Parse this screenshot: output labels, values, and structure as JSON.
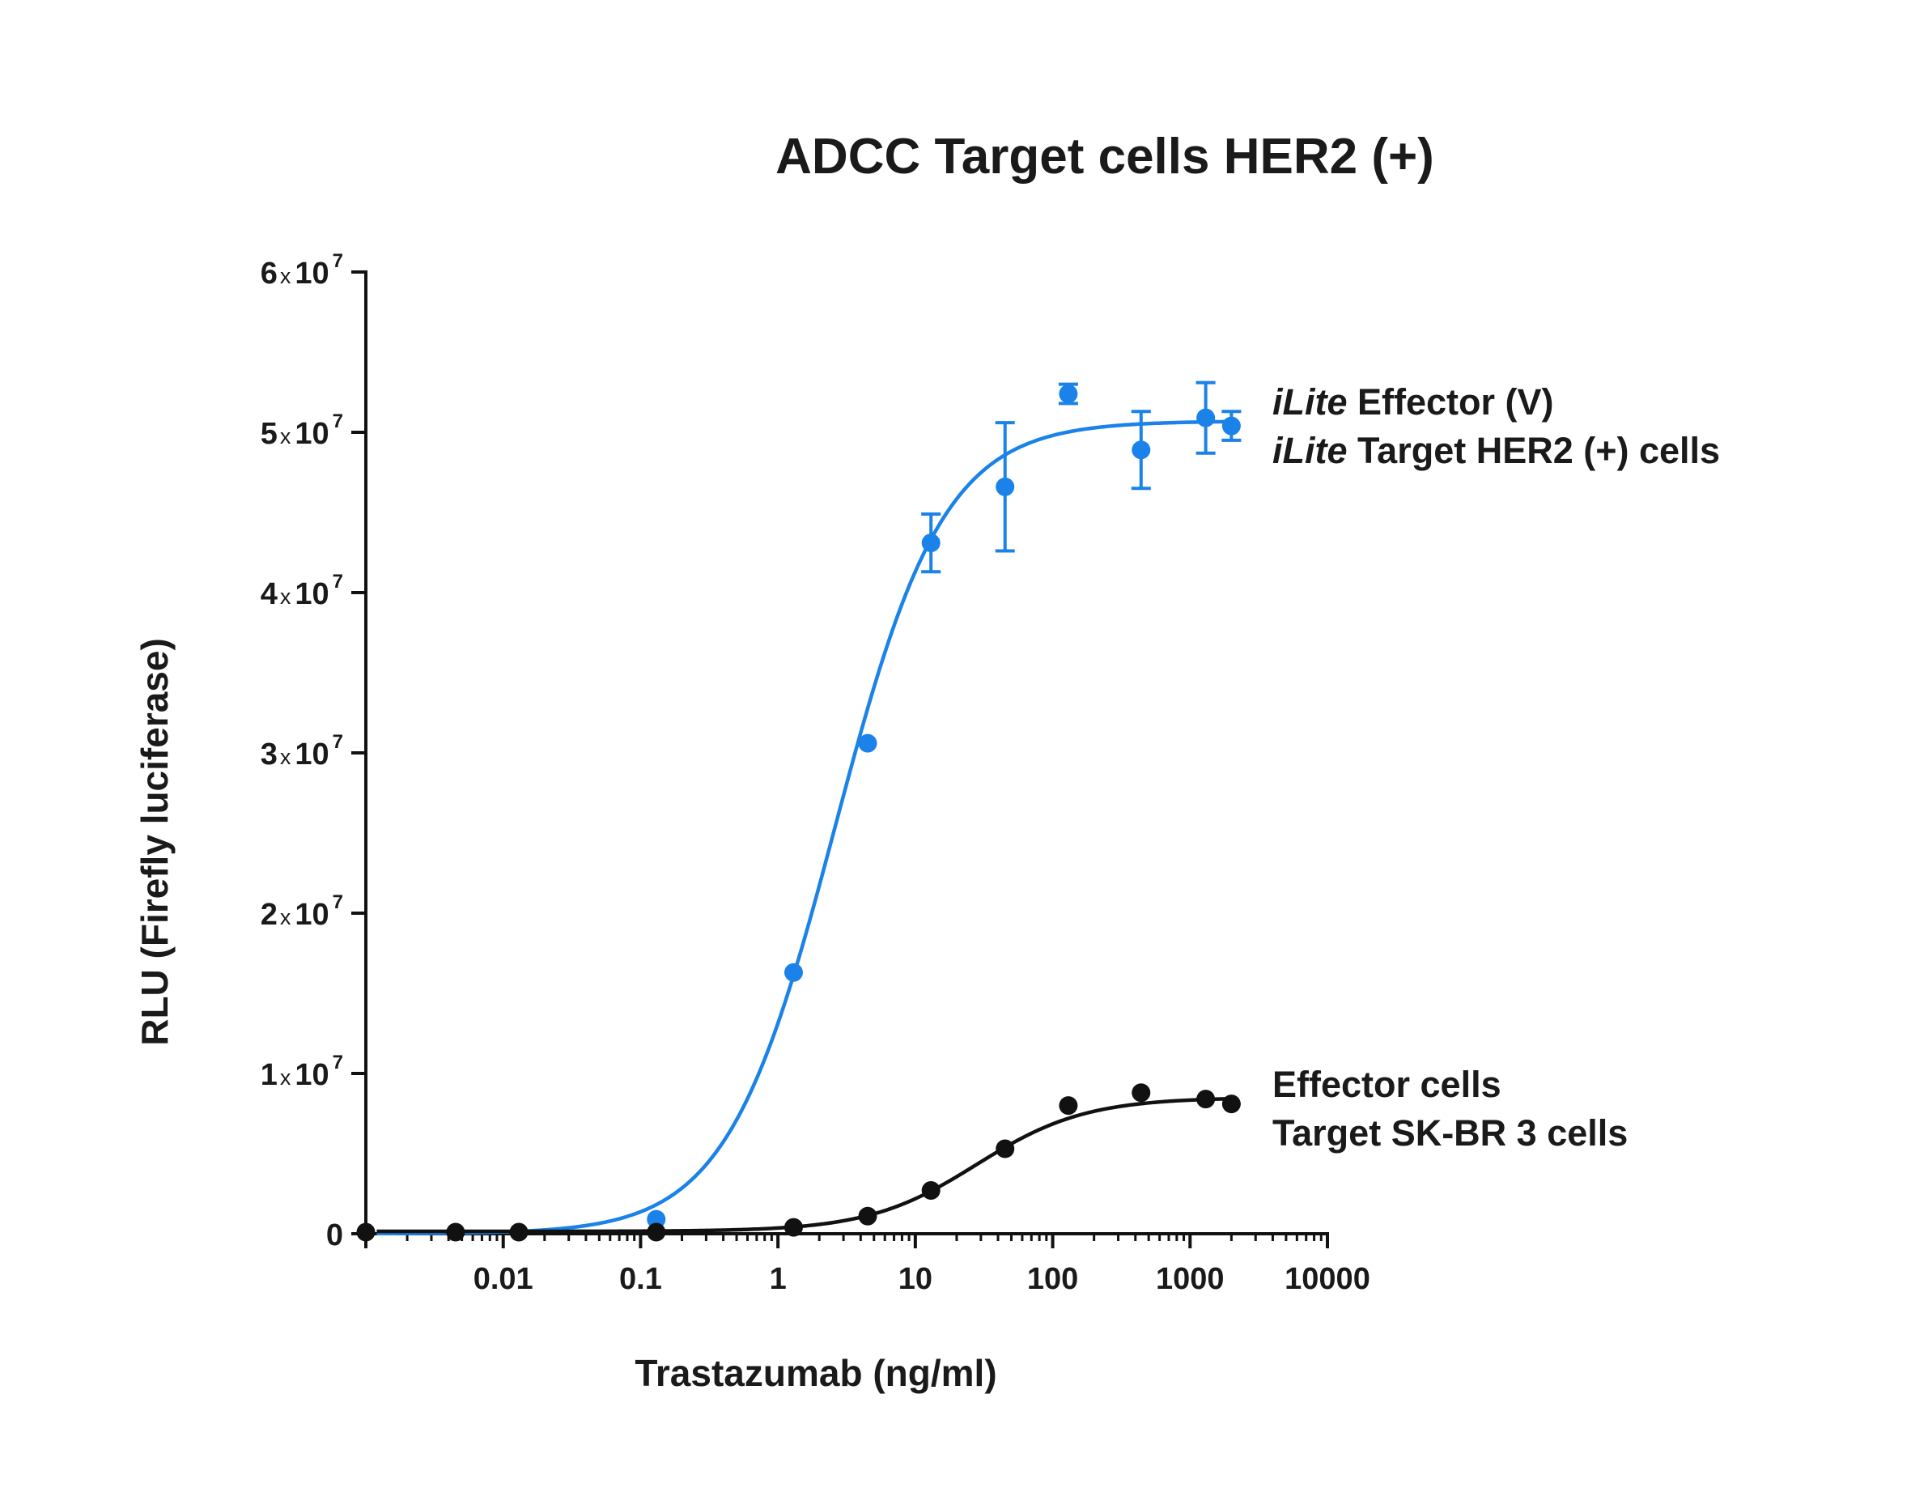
{
  "chart_data": {
    "type": "scatter",
    "title": "ADCC Target cells HER2 (+)",
    "xlabel": "Trastazumab (ng/ml)",
    "ylabel": "RLU (Firefly luciferase)",
    "x_scale": "log",
    "xlim": [
      0.001,
      10000
    ],
    "ylim": [
      0,
      60000000
    ],
    "x_ticks": [
      {
        "value": 0.01,
        "label": "0.01"
      },
      {
        "value": 0.1,
        "label": "0.1"
      },
      {
        "value": 1,
        "label": "1"
      },
      {
        "value": 10,
        "label": "10"
      },
      {
        "value": 100,
        "label": "100"
      },
      {
        "value": 1000,
        "label": "1000"
      },
      {
        "value": 10000,
        "label": "10000"
      }
    ],
    "y_ticks": [
      {
        "value": 0,
        "mantissa": "0",
        "times": "",
        "base": "",
        "exp": ""
      },
      {
        "value": 10000000,
        "mantissa": "1",
        "times": "x",
        "base": "10",
        "exp": "7"
      },
      {
        "value": 20000000,
        "mantissa": "2",
        "times": "x",
        "base": "10",
        "exp": "7"
      },
      {
        "value": 30000000,
        "mantissa": "3",
        "times": "x",
        "base": "10",
        "exp": "7"
      },
      {
        "value": 40000000,
        "mantissa": "4",
        "times": "x",
        "base": "10",
        "exp": "7"
      },
      {
        "value": 50000000,
        "mantissa": "5",
        "times": "x",
        "base": "10",
        "exp": "7"
      },
      {
        "value": 60000000,
        "mantissa": "6",
        "times": "x",
        "base": "10",
        "exp": "7"
      }
    ],
    "grid": false,
    "legend_placement": "right, next to each curve",
    "series": [
      {
        "color": "#1a82e8",
        "label_lines": [
          {
            "italic": "iLite",
            "text": " Effector (V)"
          },
          {
            "italic": "iLite",
            "text": " Target HER2 (+) cells"
          }
        ],
        "points": [
          {
            "x": 0.13,
            "y": 900000,
            "err": 0
          },
          {
            "x": 1.3,
            "y": 16300000,
            "err": 0
          },
          {
            "x": 4.5,
            "y": 30600000,
            "err": 0
          },
          {
            "x": 13,
            "y": 43100000,
            "err": 1800000
          },
          {
            "x": 45,
            "y": 46600000,
            "err": 4000000
          },
          {
            "x": 130,
            "y": 52400000,
            "err": 600000
          },
          {
            "x": 440,
            "y": 48900000,
            "err": 2400000
          },
          {
            "x": 1300,
            "y": 50900000,
            "err": 2200000
          },
          {
            "x": 2000,
            "y": 50400000,
            "err": 900000
          }
        ],
        "fit": {
          "bottom": 0,
          "top": 50700000,
          "ec50": 2.6,
          "hill": 1.1
        }
      },
      {
        "color": "#111111",
        "label_lines": [
          {
            "italic": "",
            "text": "Effector cells"
          },
          {
            "italic": "",
            "text": "Target SK-BR 3 cells"
          }
        ],
        "points": [
          {
            "x": 0.001,
            "y": 100000,
            "err": 0
          },
          {
            "x": 0.0045,
            "y": 100000,
            "err": 0
          },
          {
            "x": 0.013,
            "y": 100000,
            "err": 0
          },
          {
            "x": 0.13,
            "y": 100000,
            "err": 0
          },
          {
            "x": 1.3,
            "y": 400000,
            "err": 0
          },
          {
            "x": 4.5,
            "y": 1100000,
            "err": 0
          },
          {
            "x": 13,
            "y": 2700000,
            "err": 0
          },
          {
            "x": 45,
            "y": 5300000,
            "err": 0
          },
          {
            "x": 130,
            "y": 8000000,
            "err": 0
          },
          {
            "x": 440,
            "y": 8800000,
            "err": 0
          },
          {
            "x": 1300,
            "y": 8400000,
            "err": 0
          },
          {
            "x": 2000,
            "y": 8100000,
            "err": 0
          }
        ],
        "fit": {
          "bottom": 150000,
          "top": 8500000,
          "ec50": 28,
          "hill": 1.1
        }
      }
    ]
  }
}
